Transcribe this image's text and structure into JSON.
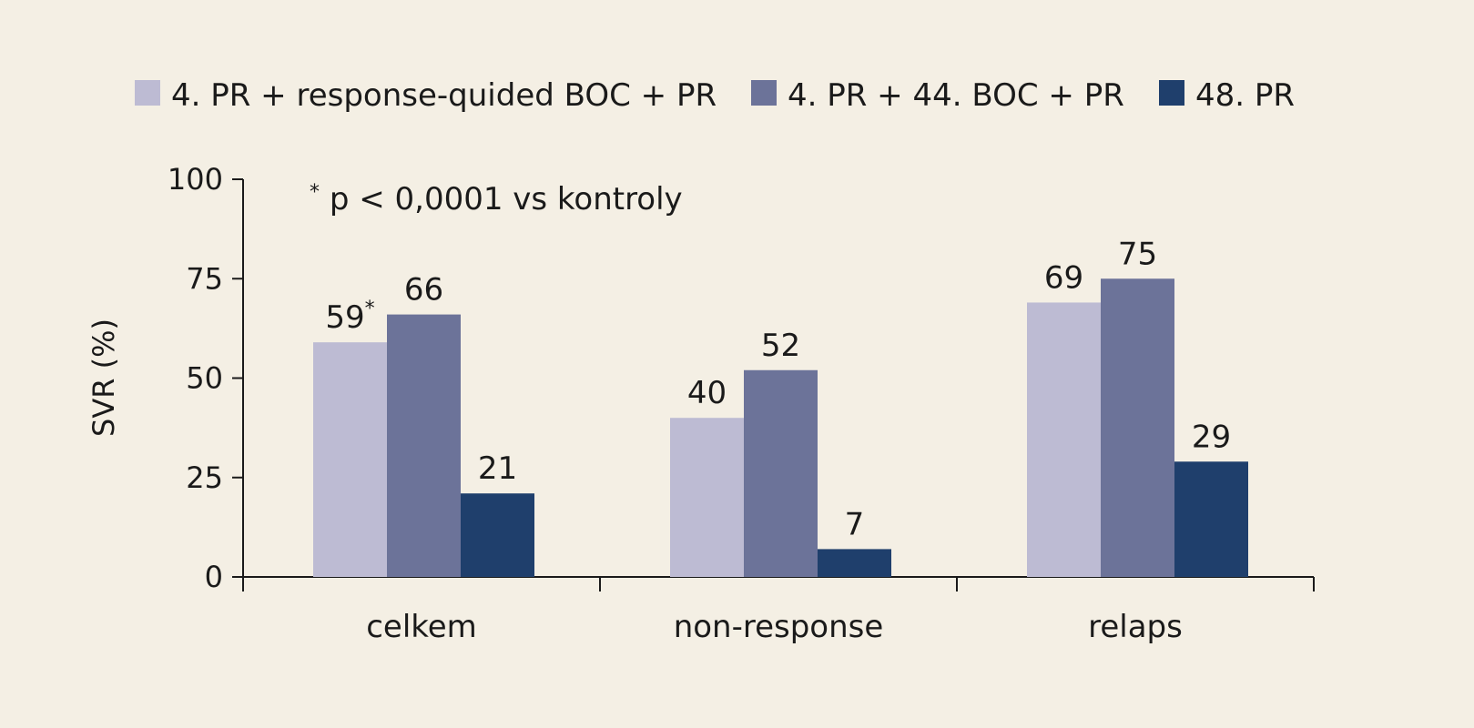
{
  "chart_data": {
    "type": "bar",
    "categories": [
      "celkem",
      "non-response",
      "relaps"
    ],
    "series": [
      {
        "name": "4. PR + response-quided BOC + PR",
        "color": "#bdbbd3",
        "values": [
          59,
          40,
          69
        ],
        "value_labels": [
          "59",
          "40",
          "69"
        ],
        "label_suffixes": [
          "*",
          "",
          ""
        ]
      },
      {
        "name": "4. PR + 44. BOC + PR",
        "color": "#6c7399",
        "values": [
          66,
          52,
          75
        ],
        "value_labels": [
          "66",
          "52",
          "75"
        ],
        "label_suffixes": [
          "",
          "",
          ""
        ]
      },
      {
        "name": "48. PR",
        "color": "#1f3f6c",
        "values": [
          21,
          7,
          29
        ],
        "value_labels": [
          "21",
          "7",
          "29"
        ],
        "label_suffixes": [
          "",
          "",
          ""
        ]
      }
    ],
    "ylabel": "SVR (%)",
    "xlabel": "",
    "ylim": [
      0,
      100
    ],
    "yticks": [
      0,
      25,
      50,
      75,
      100
    ],
    "ytick_labels": [
      "0",
      "25",
      "50",
      "75",
      "100"
    ],
    "legend_position": "top",
    "grid": false,
    "annotation": {
      "superscript": "*",
      "text": "p < 0,0001 vs kontroly"
    }
  }
}
